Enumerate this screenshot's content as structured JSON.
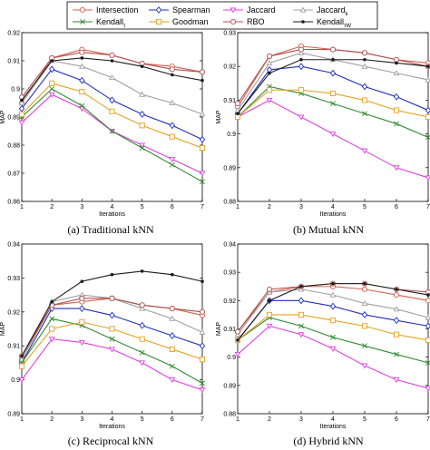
{
  "legend": {
    "entries": [
      {
        "key": "intersection",
        "label": "Intersection",
        "color": "#d6604d",
        "marker": "circle"
      },
      {
        "key": "spearman",
        "label": "Spearman",
        "color": "#1f2fbf",
        "marker": "diamond"
      },
      {
        "key": "jaccard",
        "label": "Jaccard",
        "color": "#e040e0",
        "marker": "triangle-down"
      },
      {
        "key": "jaccard_k",
        "label": "Jaccard",
        "sub": "k",
        "color": "#a0a0a0",
        "marker": "triangle-up"
      },
      {
        "key": "kendall_tau",
        "label": "Kendall",
        "sub": "τ",
        "color": "#2e8b2e",
        "marker": "x"
      },
      {
        "key": "goodman",
        "label": "Goodman",
        "color": "#e6a020",
        "marker": "square"
      },
      {
        "key": "rbo",
        "label": "RBO",
        "color": "#b05050",
        "marker": "circle"
      },
      {
        "key": "kendall_tau_w",
        "label": "Kendall",
        "sub": "τW",
        "color": "#1a1a1a",
        "marker": "dot"
      }
    ]
  },
  "chart_data": [
    {
      "type": "line",
      "caption": "(a) Traditional kNN",
      "xlabel": "Iterations",
      "ylabel": "MAP",
      "x": [
        1,
        2,
        3,
        4,
        5,
        6,
        7
      ],
      "xlim": [
        1,
        7
      ],
      "ylim": [
        0.86,
        0.92
      ],
      "yticks": [
        "0.86",
        "0.87",
        "0.88",
        "0.89",
        "0.9",
        "0.91",
        "0.92"
      ],
      "grid": false,
      "series": [
        {
          "key": "intersection",
          "values": [
            0.895,
            0.911,
            0.914,
            0.912,
            0.909,
            0.908,
            0.906
          ]
        },
        {
          "key": "spearman",
          "values": [
            0.893,
            0.907,
            0.903,
            0.896,
            0.891,
            0.887,
            0.882
          ]
        },
        {
          "key": "jaccard",
          "values": [
            0.888,
            0.898,
            0.893,
            0.885,
            0.88,
            0.875,
            0.87
          ]
        },
        {
          "key": "jaccard_k",
          "values": [
            0.895,
            0.91,
            0.908,
            0.904,
            0.898,
            0.895,
            0.891
          ]
        },
        {
          "key": "kendall_tau",
          "values": [
            0.89,
            0.9,
            0.894,
            0.885,
            0.879,
            0.873,
            0.867
          ]
        },
        {
          "key": "goodman",
          "values": [
            0.891,
            0.902,
            0.899,
            0.892,
            0.887,
            0.883,
            0.879
          ]
        },
        {
          "key": "rbo",
          "values": [
            0.897,
            0.911,
            0.913,
            0.912,
            0.909,
            0.907,
            0.906
          ]
        },
        {
          "key": "kendall_tau_w",
          "values": [
            0.896,
            0.91,
            0.911,
            0.91,
            0.908,
            0.905,
            0.903
          ]
        }
      ]
    },
    {
      "type": "line",
      "caption": "(b) Mutual kNN",
      "xlabel": "Iterations",
      "ylabel": "MAP",
      "x": [
        1,
        2,
        3,
        4,
        5,
        6,
        7
      ],
      "xlim": [
        1,
        7
      ],
      "ylim": [
        0.88,
        0.93
      ],
      "yticks": [
        "0.88",
        "0.89",
        "0.9",
        "0.91",
        "0.92",
        "0.93"
      ],
      "grid": false,
      "series": [
        {
          "key": "intersection",
          "values": [
            0.908,
            0.923,
            0.926,
            0.925,
            0.924,
            0.922,
            0.921
          ]
        },
        {
          "key": "spearman",
          "values": [
            0.906,
            0.919,
            0.92,
            0.918,
            0.914,
            0.911,
            0.907
          ]
        },
        {
          "key": "jaccard",
          "values": [
            0.905,
            0.91,
            0.905,
            0.9,
            0.895,
            0.89,
            0.887
          ]
        },
        {
          "key": "jaccard_k",
          "values": [
            0.907,
            0.921,
            0.924,
            0.922,
            0.92,
            0.918,
            0.916
          ]
        },
        {
          "key": "kendall_tau",
          "values": [
            0.905,
            0.914,
            0.912,
            0.909,
            0.906,
            0.903,
            0.899
          ]
        },
        {
          "key": "goodman",
          "values": [
            0.905,
            0.913,
            0.913,
            0.912,
            0.91,
            0.907,
            0.905
          ]
        },
        {
          "key": "rbo",
          "values": [
            0.909,
            0.923,
            0.925,
            0.925,
            0.924,
            0.922,
            0.92
          ]
        },
        {
          "key": "kendall_tau_w",
          "values": [
            0.906,
            0.918,
            0.922,
            0.922,
            0.922,
            0.921,
            0.92
          ]
        }
      ]
    },
    {
      "type": "line",
      "caption": "(c) Reciprocal kNN",
      "xlabel": "Iterations",
      "ylabel": "MAP",
      "x": [
        1,
        2,
        3,
        4,
        5,
        6,
        7
      ],
      "xlim": [
        1,
        7
      ],
      "ylim": [
        0.89,
        0.94
      ],
      "yticks": [
        "0.89",
        "0.9",
        "0.91",
        "0.92",
        "0.93",
        "0.94"
      ],
      "grid": false,
      "series": [
        {
          "key": "intersection",
          "values": [
            0.906,
            0.922,
            0.923,
            0.924,
            0.922,
            0.921,
            0.919
          ]
        },
        {
          "key": "spearman",
          "values": [
            0.905,
            0.921,
            0.921,
            0.919,
            0.916,
            0.913,
            0.91
          ]
        },
        {
          "key": "jaccard",
          "values": [
            0.9,
            0.912,
            0.911,
            0.909,
            0.905,
            0.9,
            0.897
          ]
        },
        {
          "key": "jaccard_k",
          "values": [
            0.906,
            0.923,
            0.925,
            0.924,
            0.921,
            0.918,
            0.914
          ]
        },
        {
          "key": "kendall_tau",
          "values": [
            0.905,
            0.918,
            0.916,
            0.912,
            0.908,
            0.904,
            0.899
          ]
        },
        {
          "key": "goodman",
          "values": [
            0.904,
            0.915,
            0.917,
            0.915,
            0.912,
            0.909,
            0.906
          ]
        },
        {
          "key": "rbo",
          "values": [
            0.907,
            0.922,
            0.924,
            0.924,
            0.922,
            0.921,
            0.92
          ]
        },
        {
          "key": "kendall_tau_w",
          "values": [
            0.907,
            0.923,
            0.929,
            0.931,
            0.932,
            0.931,
            0.929
          ]
        }
      ]
    },
    {
      "type": "line",
      "caption": "(d) Hybrid kNN",
      "xlabel": "Iterations",
      "ylabel": "MAP",
      "x": [
        1,
        2,
        3,
        4,
        5,
        6,
        7
      ],
      "xlim": [
        1,
        7
      ],
      "ylim": [
        0.88,
        0.94
      ],
      "yticks": [
        "0.88",
        "0.89",
        "0.9",
        "0.91",
        "0.92",
        "0.93",
        "0.94"
      ],
      "grid": false,
      "series": [
        {
          "key": "intersection",
          "values": [
            0.909,
            0.923,
            0.925,
            0.925,
            0.924,
            0.922,
            0.92
          ]
        },
        {
          "key": "spearman",
          "values": [
            0.906,
            0.92,
            0.92,
            0.918,
            0.915,
            0.913,
            0.911
          ]
        },
        {
          "key": "jaccard",
          "values": [
            0.901,
            0.911,
            0.908,
            0.903,
            0.897,
            0.892,
            0.889
          ]
        },
        {
          "key": "jaccard_k",
          "values": [
            0.908,
            0.923,
            0.924,
            0.922,
            0.919,
            0.917,
            0.914
          ]
        },
        {
          "key": "kendall_tau",
          "values": [
            0.906,
            0.914,
            0.911,
            0.907,
            0.904,
            0.901,
            0.898
          ]
        },
        {
          "key": "goodman",
          "values": [
            0.906,
            0.915,
            0.915,
            0.913,
            0.911,
            0.908,
            0.906
          ]
        },
        {
          "key": "rbo",
          "values": [
            0.909,
            0.924,
            0.925,
            0.926,
            0.926,
            0.924,
            0.923
          ]
        },
        {
          "key": "kendall_tau_w",
          "values": [
            0.906,
            0.92,
            0.925,
            0.926,
            0.926,
            0.924,
            0.922
          ]
        }
      ]
    }
  ]
}
